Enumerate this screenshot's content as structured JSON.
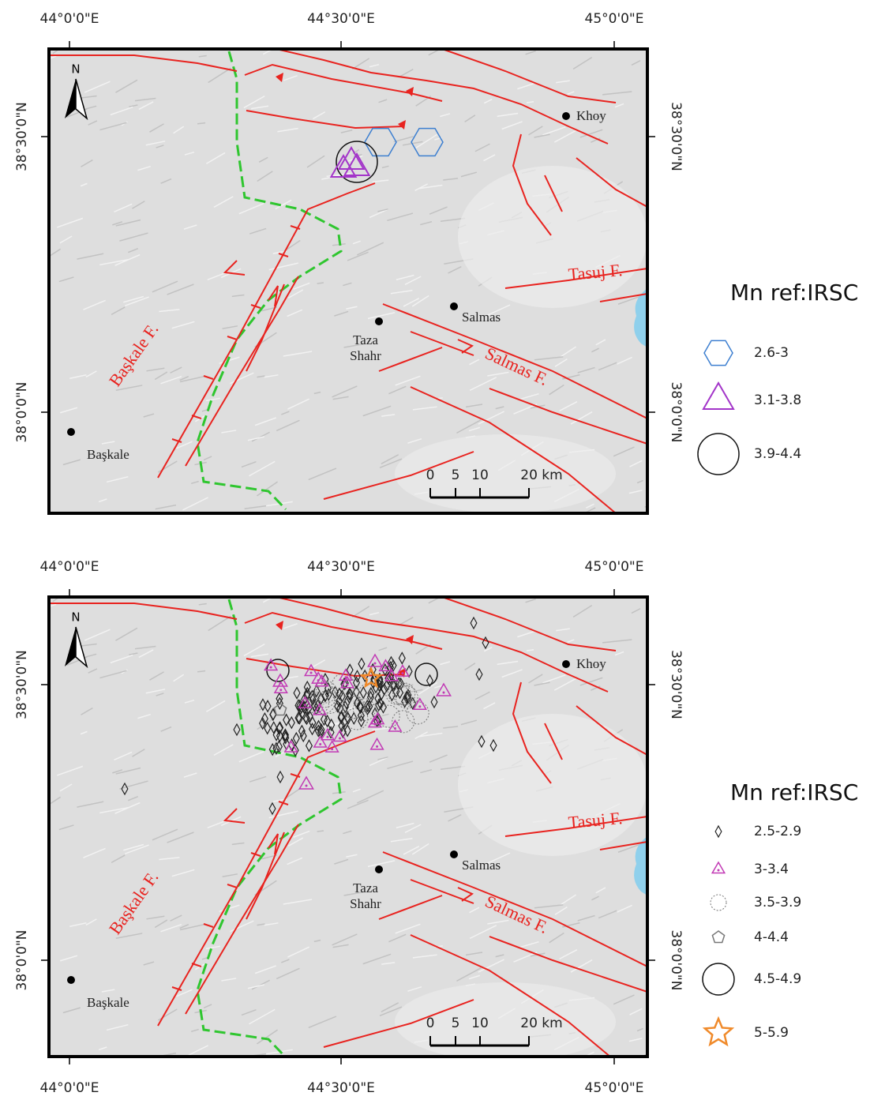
{
  "maps": [
    {
      "lon_labels": [
        "44°0'0\"E",
        "44°30'0\"E",
        "45°0'0\"E"
      ],
      "lat_labels": [
        "38°30'0\"N",
        "38°0'0\"N"
      ],
      "north": "N",
      "places": [
        {
          "label": "Khoy"
        },
        {
          "label": "Salmas"
        },
        {
          "lines": [
            "Taza",
            "Shahr"
          ]
        },
        {
          "label": "Başkale"
        }
      ],
      "faults": [
        "Tasuj F.",
        "Salmas F.",
        "Başkale F."
      ],
      "scale": [
        "0",
        "5",
        "10",
        "20 km"
      ],
      "legend": {
        "title": "Mn  ref:IRSC",
        "items": [
          {
            "label": "2.6-3",
            "shape": "hexagon",
            "color": "#3d7fd0"
          },
          {
            "label": "3.1-3.8",
            "shape": "triangle",
            "color": "#a335c9"
          },
          {
            "label": "3.9-4.4",
            "shape": "circle",
            "color": "#111111"
          }
        ]
      }
    },
    {
      "lon_labels": [
        "44°0'0\"E",
        "44°30'0\"E",
        "45°0'0\"E"
      ],
      "lat_labels": [
        "38°30'0\"N",
        "38°0'0\"N"
      ],
      "north": "N",
      "places": [
        {
          "label": "Khoy"
        },
        {
          "label": "Salmas"
        },
        {
          "lines": [
            "Taza",
            "Shahr"
          ]
        },
        {
          "label": "Başkale"
        }
      ],
      "faults": [
        "Tasuj F.",
        "Salmas F.",
        "Başkale F."
      ],
      "scale": [
        "0",
        "5",
        "10",
        "20 km"
      ],
      "legend": {
        "title": "Mn  ref:IRSC",
        "items": [
          {
            "label": "2.5-2.9",
            "shape": "diamond",
            "color": "#222222"
          },
          {
            "label": "3-3.4",
            "shape": "triangle-dot",
            "color": "#c23ab5"
          },
          {
            "label": "3.5-3.9",
            "shape": "circle-dotted",
            "color": "#777777"
          },
          {
            "label": "4-4.4",
            "shape": "pentagon",
            "color": "#777777"
          },
          {
            "label": "4.5-4.9",
            "shape": "circle-big",
            "color": "#111111"
          },
          {
            "label": "5-5.9",
            "shape": "star",
            "color": "#f08a2a"
          }
        ]
      }
    }
  ]
}
